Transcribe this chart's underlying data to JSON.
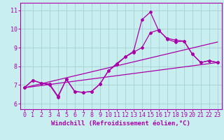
{
  "xlabel": "Windchill (Refroidissement éolien,°C)",
  "bg_color": "#c8eef0",
  "line_color": "#aa00aa",
  "xlim": [
    -0.5,
    23.5
  ],
  "ylim": [
    5.7,
    11.4
  ],
  "xticks": [
    0,
    1,
    2,
    3,
    4,
    5,
    6,
    7,
    8,
    9,
    10,
    11,
    12,
    13,
    14,
    15,
    16,
    17,
    18,
    19,
    20,
    21,
    22,
    23
  ],
  "yticks": [
    6,
    7,
    8,
    9,
    10,
    11
  ],
  "line1_x": [
    0,
    1,
    2,
    3,
    4,
    5,
    6,
    7,
    8,
    9,
    10,
    11,
    12,
    13,
    14,
    15,
    16,
    17,
    18,
    19,
    20,
    21,
    22,
    23
  ],
  "line1_y": [
    6.85,
    7.25,
    7.1,
    7.0,
    6.35,
    7.3,
    6.65,
    6.6,
    6.65,
    7.05,
    7.75,
    8.1,
    8.5,
    8.75,
    9.0,
    9.8,
    9.95,
    9.45,
    9.3,
    9.35,
    8.65,
    8.2,
    8.3,
    8.2
  ],
  "line2_x": [
    0,
    1,
    2,
    3,
    4,
    5,
    6,
    7,
    8,
    9,
    10,
    11,
    12,
    13,
    14,
    15,
    16,
    17,
    18,
    19,
    20,
    21,
    22,
    23
  ],
  "line2_y": [
    6.85,
    7.25,
    7.1,
    7.05,
    6.4,
    7.3,
    6.65,
    6.6,
    6.65,
    7.05,
    7.75,
    8.15,
    8.5,
    8.8,
    10.5,
    10.9,
    9.9,
    9.5,
    9.4,
    9.35,
    8.65,
    8.2,
    8.3,
    8.2
  ],
  "line3_x": [
    0,
    23
  ],
  "line3_y": [
    6.85,
    8.2
  ],
  "line4_x": [
    0,
    23
  ],
  "line4_y": [
    6.85,
    9.3
  ],
  "grid_color": "#a0ccc8",
  "marker": "D",
  "markersize": 2.0,
  "linewidth": 0.9,
  "xlabel_fontsize": 6.5,
  "tick_fontsize": 6.0
}
